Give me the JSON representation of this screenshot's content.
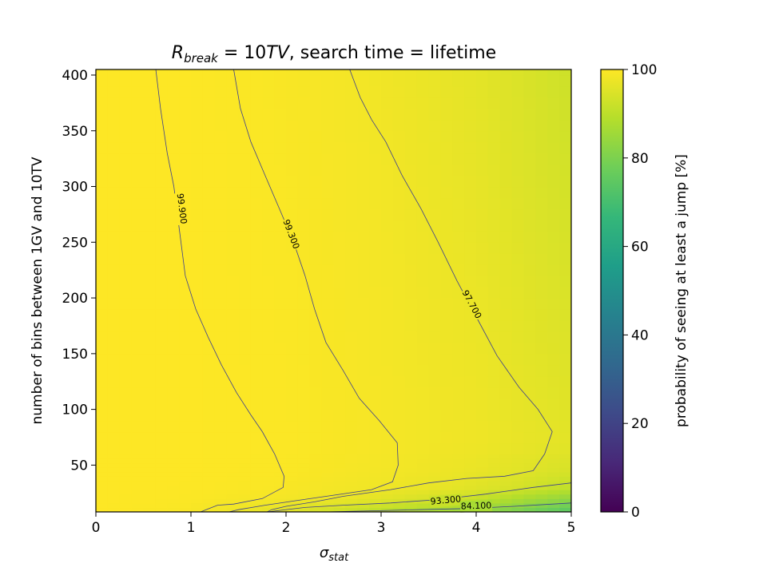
{
  "chart_data": {
    "type": "heatmap",
    "title_main": "R",
    "title_sub": "break",
    "title_eq": " = 10",
    "title_unit": "TV",
    "title_rest": ", search time = lifetime",
    "xlabel_main": "σ",
    "xlabel_sub": "stat",
    "ylabel": "number of bins between 1GV and 10TV",
    "colorbar_label": "probability of seeing at least a jump [%]",
    "colormap": "viridis",
    "xlim": [
      0,
      5
    ],
    "ylim": [
      8,
      405
    ],
    "clim": [
      0,
      100
    ],
    "x_ticks": [
      0,
      1,
      2,
      3,
      4,
      5
    ],
    "y_ticks": [
      50,
      100,
      150,
      200,
      250,
      300,
      350,
      400
    ],
    "colorbar_ticks": [
      0,
      20,
      40,
      60,
      80,
      100
    ],
    "field": {
      "x": [
        0,
        1,
        2,
        2.5,
        3,
        3.5,
        4,
        4.5,
        5
      ],
      "y": [
        8,
        20,
        30,
        45,
        70,
        100,
        200,
        300,
        405
      ],
      "z": [
        [
          100,
          99.2,
          95.5,
          92.5,
          89.5,
          86.5,
          83.5,
          78.5,
          73
        ],
        [
          100,
          99.7,
          98.5,
          97.5,
          96,
          94,
          91.5,
          87,
          83
        ],
        [
          100,
          99.9,
          99.3,
          98.6,
          97.9,
          96.9,
          95.5,
          93.5,
          90.5
        ],
        [
          100,
          99.95,
          99.6,
          99.1,
          98.6,
          97.9,
          97,
          95.6,
          94
        ],
        [
          100,
          99.97,
          99.7,
          99.3,
          98.9,
          98.3,
          97.8,
          96.8,
          96
        ],
        [
          100,
          99.97,
          99.65,
          99.25,
          98.85,
          98.2,
          97.7,
          96.5,
          95.5
        ],
        [
          100,
          99.96,
          99.55,
          99.15,
          98.65,
          97.85,
          97.2,
          95.8,
          94.5
        ],
        [
          100,
          99.95,
          99.45,
          99,
          98.4,
          97.5,
          96.6,
          95,
          93.5
        ],
        [
          100,
          99.94,
          99.3,
          98.8,
          98.1,
          97.1,
          96.1,
          94.5,
          92.5
        ]
      ]
    },
    "contours": [
      {
        "level_label": "99.900",
        "points": [
          [
            0.63,
            405
          ],
          [
            0.68,
            370
          ],
          [
            0.75,
            330
          ],
          [
            0.82,
            300
          ],
          [
            0.88,
            260
          ],
          [
            0.94,
            220
          ],
          [
            1.05,
            190
          ],
          [
            1.18,
            165
          ],
          [
            1.32,
            140
          ],
          [
            1.48,
            115
          ],
          [
            1.63,
            95
          ],
          [
            1.75,
            80
          ],
          [
            1.88,
            60
          ],
          [
            1.98,
            40
          ],
          [
            1.97,
            30
          ],
          [
            1.75,
            20
          ],
          [
            1.45,
            15
          ],
          [
            1.28,
            14
          ],
          [
            1.1,
            8
          ]
        ]
      },
      {
        "level_label": "99.300",
        "points": [
          [
            1.45,
            405
          ],
          [
            1.52,
            370
          ],
          [
            1.63,
            340
          ],
          [
            1.78,
            310
          ],
          [
            1.93,
            280
          ],
          [
            2.08,
            250
          ],
          [
            2.2,
            220
          ],
          [
            2.3,
            190
          ],
          [
            2.42,
            160
          ],
          [
            2.6,
            135
          ],
          [
            2.77,
            110
          ],
          [
            2.98,
            90
          ],
          [
            3.17,
            70
          ],
          [
            3.18,
            50
          ],
          [
            3.12,
            35
          ],
          [
            2.9,
            28
          ],
          [
            2.5,
            23
          ],
          [
            2.1,
            18
          ],
          [
            1.78,
            14
          ],
          [
            1.5,
            10
          ],
          [
            1.4,
            8
          ]
        ]
      },
      {
        "level_label": "97.700",
        "points": [
          [
            2.67,
            405
          ],
          [
            2.78,
            380
          ],
          [
            2.9,
            360
          ],
          [
            3.05,
            340
          ],
          [
            3.22,
            310
          ],
          [
            3.42,
            280
          ],
          [
            3.6,
            250
          ],
          [
            3.8,
            215
          ],
          [
            4.02,
            180
          ],
          [
            4.22,
            148
          ],
          [
            4.45,
            120
          ],
          [
            4.65,
            100
          ],
          [
            4.8,
            80
          ],
          [
            4.72,
            60
          ],
          [
            4.6,
            45
          ],
          [
            4.3,
            40
          ],
          [
            3.9,
            38
          ],
          [
            3.5,
            34
          ],
          [
            3.1,
            28
          ],
          [
            2.6,
            22
          ],
          [
            2.3,
            17
          ],
          [
            2.0,
            13
          ],
          [
            1.85,
            10
          ],
          [
            1.8,
            8
          ]
        ]
      },
      {
        "level_label": "93.300",
        "points": [
          [
            1.8,
            8
          ],
          [
            2.2,
            12
          ],
          [
            2.6,
            14
          ],
          [
            3.1,
            16
          ],
          [
            3.6,
            19
          ],
          [
            4.1,
            24
          ],
          [
            4.6,
            30
          ],
          [
            5,
            34
          ]
        ]
      },
      {
        "level_label": "84.100",
        "points": [
          [
            2.4,
            8
          ],
          [
            2.9,
            9
          ],
          [
            3.4,
            10
          ],
          [
            3.9,
            11
          ],
          [
            4.4,
            13
          ],
          [
            5,
            16
          ]
        ]
      }
    ],
    "contour_labels": [
      {
        "text": "99.900",
        "x": 0.9,
        "y": 280
      },
      {
        "text": "99.300",
        "x": 2.05,
        "y": 257
      },
      {
        "text": "97.700",
        "x": 3.95,
        "y": 194
      },
      {
        "text": "93.300",
        "x": 3.68,
        "y": 18
      },
      {
        "text": "84.100",
        "x": 4.0,
        "y": 13
      }
    ]
  }
}
